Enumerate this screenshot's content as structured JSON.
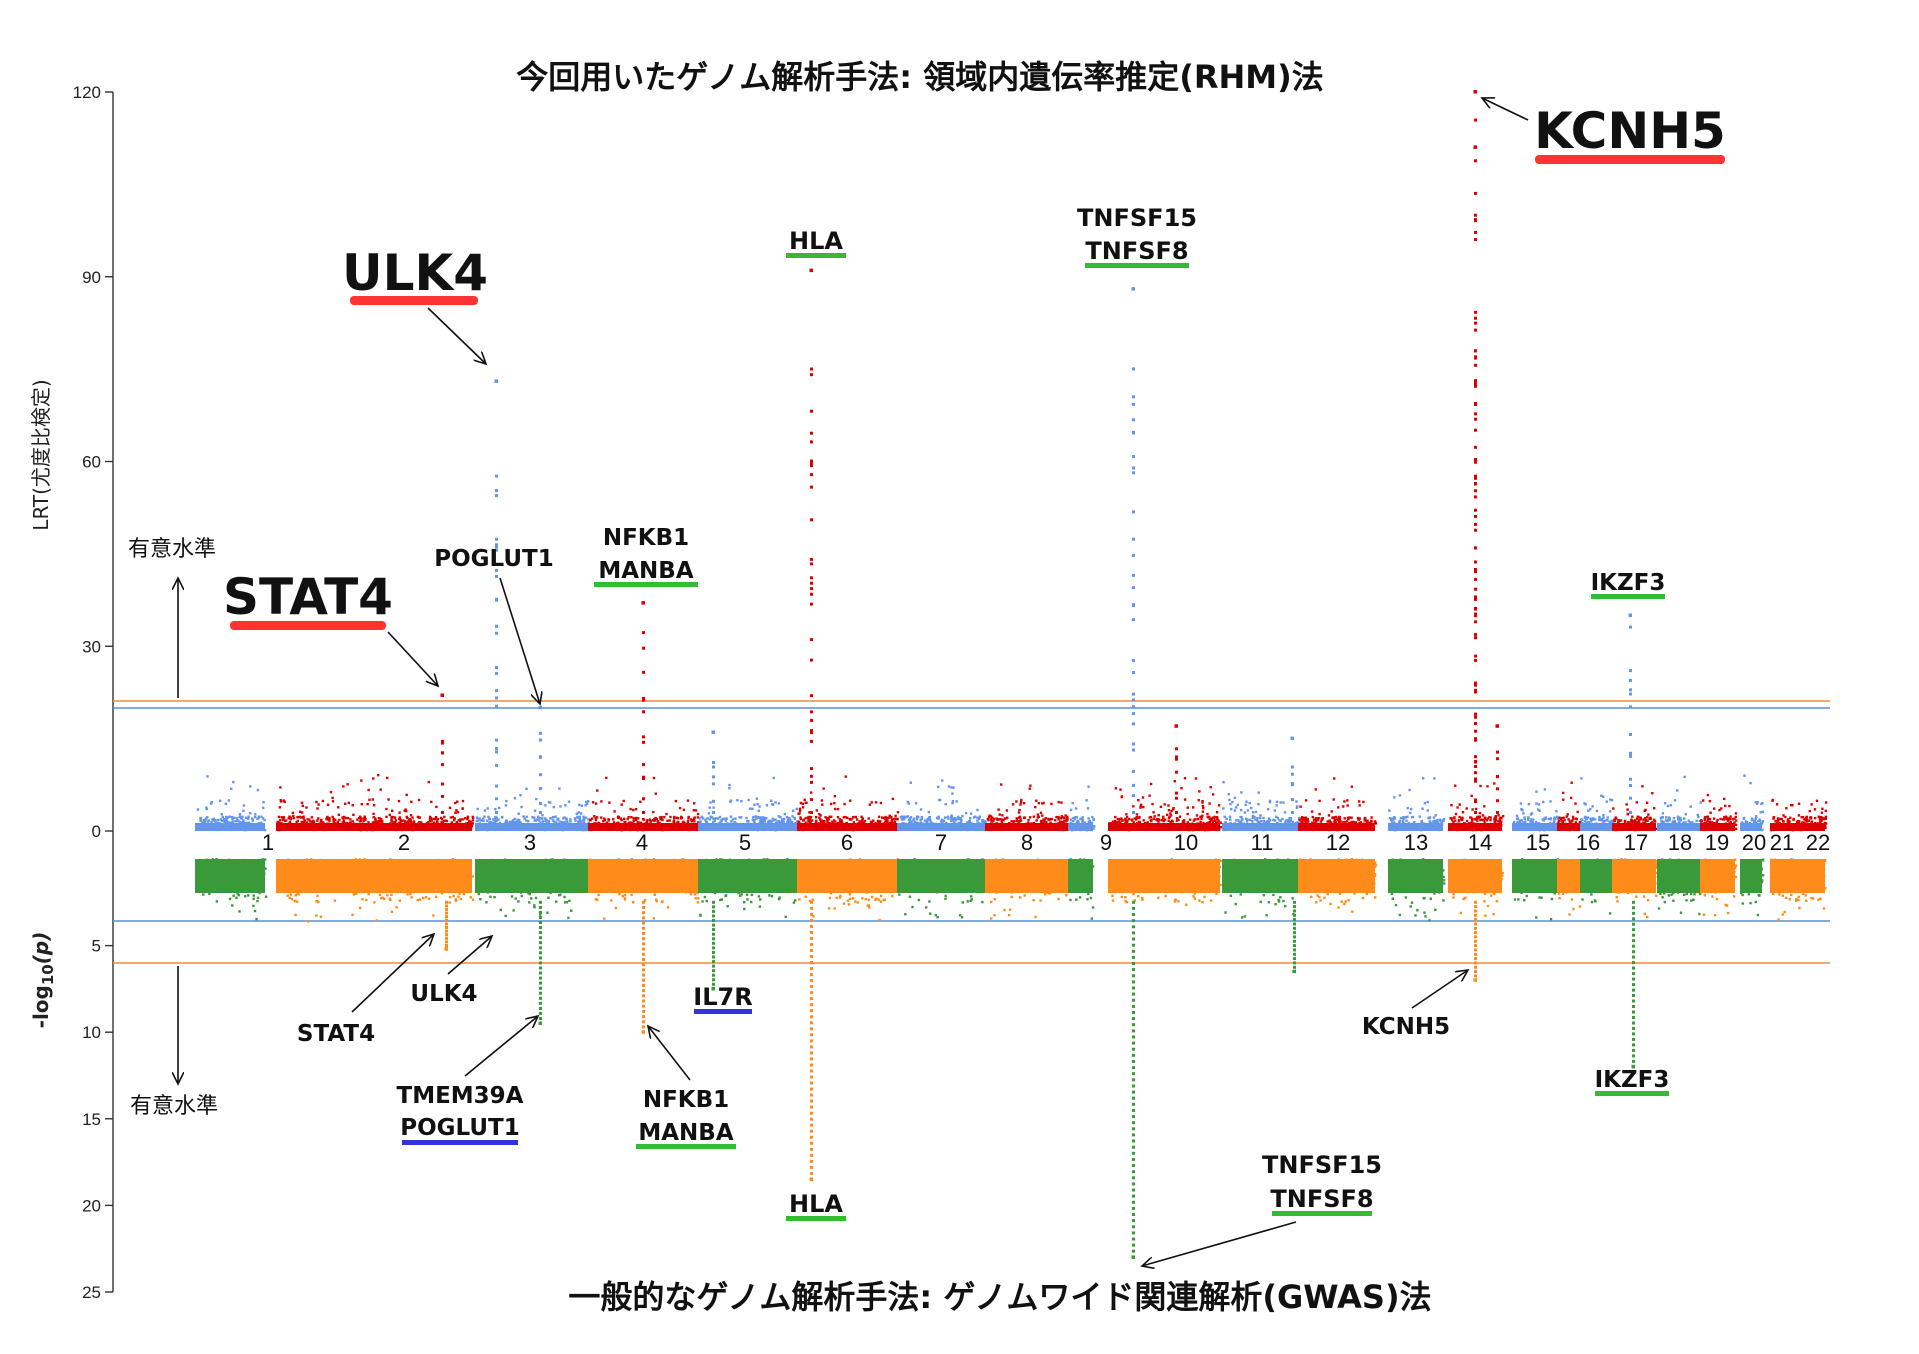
{
  "chart_data": {
    "type": "scatter",
    "title_top": "今回用いたゲノム解析手法: 領域内遺伝率推定(RHM)法",
    "title_bottom": "一般的なゲノム解析手法: ゲノムワイド関連解析(GWAS)法",
    "top_panel": {
      "ylabel": "LRT(尤度比検定)",
      "ylim": [
        0,
        120
      ],
      "yticks": [
        "0",
        "30",
        "60",
        "90",
        "120"
      ],
      "threshold_blue": 20,
      "threshold_orange": 21,
      "significance_label": "有意水準"
    },
    "bottom_panel": {
      "ylabel_prefix": "-log",
      "ylabel_sub": "10",
      "ylabel_suffix": "(p)",
      "ylim": [
        0,
        25
      ],
      "yticks": [
        "5",
        "10",
        "15",
        "20",
        "25"
      ],
      "threshold_blue": 5,
      "threshold_orange": 7.3,
      "significance_label": "有意水準"
    },
    "chromosomes": [
      "1",
      "2",
      "3",
      "4",
      "5",
      "6",
      "7",
      "8",
      "9",
      "10",
      "11",
      "12",
      "13",
      "14",
      "15",
      "16",
      "17",
      "18",
      "19",
      "20",
      "21",
      "22"
    ],
    "colors": {
      "rhm_odd": "#6495ED",
      "rhm_even": "#DD0000",
      "gwas_odd": "#3A9A3A",
      "gwas_even": "#FF8C1A",
      "threshold_blue": "#5A8FD8",
      "threshold_orange": "#F08A3A",
      "underline_red": "#FF3333",
      "underline_green": "#33BB33",
      "underline_blue": "#3333DD"
    },
    "peaks_top": [
      {
        "chr": "2",
        "value": 22
      },
      {
        "chr": "3",
        "value": 73
      },
      {
        "chr": "3",
        "value": 20
      },
      {
        "chr": "4",
        "value": 37
      },
      {
        "chr": "5",
        "value": 16
      },
      {
        "chr": "6",
        "value": 91
      },
      {
        "chr": "9",
        "value": 88
      },
      {
        "chr": "10",
        "value": 17
      },
      {
        "chr": "11",
        "value": 15
      },
      {
        "chr": "14",
        "value": 120
      },
      {
        "chr": "14",
        "value": 111
      },
      {
        "chr": "14",
        "value": 17
      },
      {
        "chr": "17",
        "value": 35
      }
    ],
    "peaks_bottom": [
      {
        "chr": "2",
        "value": 5.2
      },
      {
        "chr": "3",
        "value": 9.5
      },
      {
        "chr": "4",
        "value": 10
      },
      {
        "chr": "5",
        "value": 7.5
      },
      {
        "chr": "6",
        "value": 18.5
      },
      {
        "chr": "9",
        "value": 23
      },
      {
        "chr": "11",
        "value": 6.5
      },
      {
        "chr": "14",
        "value": 7
      },
      {
        "chr": "17",
        "value": 12
      }
    ],
    "annotations": {
      "kcnh5_top": "KCNH5",
      "ulk4_top": "ULK4",
      "stat4_top": "STAT4",
      "hla_top": "HLA",
      "tnfsf15_top": "TNFSF15",
      "tnfsf8_top": "TNFSF8",
      "poglut1_top": "POGLUT1",
      "nfkb1_top": "NFKB1",
      "manba_top": "MANBA",
      "ikzf3_top": "IKZF3",
      "stat4_bottom": "STAT4",
      "ulk4_bottom": "ULK4",
      "il7r_bottom": "IL7R",
      "tmem39a_bottom": "TMEM39A",
      "poglut1_bottom": "POGLUT1",
      "nfkb1_bottom": "NFKB1",
      "manba_bottom": "MANBA",
      "hla_bottom": "HLA",
      "kcnh5_bottom": "KCNH5",
      "ikzf3_bottom": "IKZF3",
      "tnfsf15_bottom": "TNFSF15",
      "tnfsf8_bottom": "TNFSF8"
    }
  }
}
